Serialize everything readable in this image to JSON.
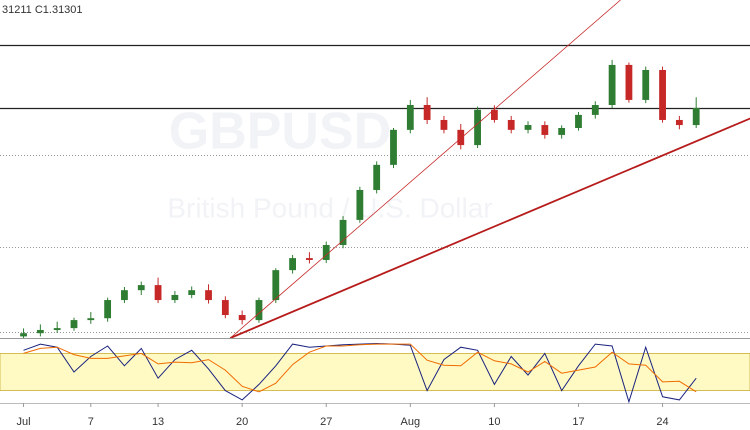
{
  "chart_data": {
    "type": "candlestick",
    "ohlc_text": "31211 C1.31301",
    "watermark": "GBPUSD",
    "watermark_subtitle": "British Pound / U.S. Dollar",
    "xlim": [
      -1.4,
      43.2
    ],
    "xticks": [
      {
        "value": 0,
        "label": "Jul"
      },
      {
        "value": 4,
        "label": "7"
      },
      {
        "value": 8,
        "label": "13"
      },
      {
        "value": 13,
        "label": "20"
      },
      {
        "value": 18,
        "label": "27"
      },
      {
        "value": 23,
        "label": "Aug"
      },
      {
        "value": 28,
        "label": "10"
      },
      {
        "value": 33,
        "label": "17"
      },
      {
        "value": 38,
        "label": "24"
      }
    ],
    "ylim": [
      1.2269,
      1.3534
    ],
    "up_color": "#2e7d32",
    "down_color": "#c62828",
    "candles": {
      "open": [
        1.2275,
        1.2287,
        1.2299,
        1.2306,
        1.2336,
        1.2343,
        1.2411,
        1.2448,
        1.2467,
        1.2411,
        1.243,
        1.2448,
        1.2411,
        1.2355,
        1.2336,
        1.2411,
        1.2523,
        1.2568,
        1.2561,
        1.2617,
        1.2711,
        1.2823,
        1.2917,
        1.3048,
        1.3141,
        1.3085,
        1.3048,
        1.2991,
        1.3123,
        1.3085,
        1.3048,
        1.3066,
        1.3029,
        1.3055,
        1.3104,
        1.3141,
        1.3291,
        1.316,
        1.3272,
        1.3085,
        1.3066
      ],
      "high": [
        1.2305,
        1.232,
        1.233,
        1.2345,
        1.2366,
        1.242,
        1.246,
        1.248,
        1.2495,
        1.2445,
        1.2462,
        1.247,
        1.2425,
        1.2372,
        1.242,
        1.253,
        1.258,
        1.259,
        1.263,
        1.2725,
        1.2835,
        1.293,
        1.3055,
        1.316,
        1.317,
        1.31,
        1.307,
        1.3135,
        1.314,
        1.31,
        1.308,
        1.308,
        1.3065,
        1.3115,
        1.3155,
        1.331,
        1.33,
        1.3285,
        1.3285,
        1.31,
        1.317
      ],
      "low": [
        1.2269,
        1.2275,
        1.2288,
        1.2296,
        1.2322,
        1.233,
        1.24,
        1.243,
        1.24,
        1.24,
        1.2418,
        1.2398,
        1.2343,
        1.232,
        1.2326,
        1.24,
        1.251,
        1.2548,
        1.255,
        1.2605,
        1.27,
        1.281,
        1.2905,
        1.3035,
        1.307,
        1.3035,
        1.2975,
        1.298,
        1.3075,
        1.3035,
        1.3035,
        1.3015,
        1.3015,
        1.3045,
        1.309,
        1.313,
        1.315,
        1.3148,
        1.3075,
        1.305,
        1.3055
      ],
      "close": [
        1.2287,
        1.2299,
        1.2306,
        1.2336,
        1.2343,
        1.2411,
        1.2448,
        1.2467,
        1.2411,
        1.243,
        1.2448,
        1.2411,
        1.2355,
        1.2336,
        1.2411,
        1.2523,
        1.2568,
        1.2561,
        1.2617,
        1.2711,
        1.2823,
        1.2917,
        1.3048,
        1.3141,
        1.3085,
        1.3048,
        1.2991,
        1.3123,
        1.3085,
        1.3048,
        1.3066,
        1.3029,
        1.3055,
        1.3104,
        1.3141,
        1.3291,
        1.316,
        1.3272,
        1.3085,
        1.3066,
        1.313
      ]
    },
    "levels": [
      {
        "value": 1.3366,
        "style": "solid"
      },
      {
        "value": 1.313,
        "style": "solid"
      },
      {
        "value": 1.2954,
        "style": "dotted"
      },
      {
        "value": 1.2609,
        "style": "dotted"
      },
      {
        "value": 1.2291,
        "style": "dotted"
      }
    ],
    "trendlines": [
      {
        "x": [
          12.3,
          35.5
        ],
        "y": [
          1.2269,
          1.3534
        ],
        "color": "#c62828",
        "width": 0.8
      },
      {
        "x": [
          12.3,
          43.3
        ],
        "y": [
          1.2269,
          1.3093
        ],
        "color": "#b71c1c",
        "width": 1.8
      }
    ],
    "oscillator": {
      "ylim": [
        0,
        100
      ],
      "band": [
        20,
        80
      ],
      "band_color": "#fff9c4",
      "series": [
        {
          "color": "#1a237e",
          "values": [
            85,
            95,
            90,
            50,
            75,
            92,
            60,
            88,
            40,
            70,
            85,
            55,
            20,
            5,
            30,
            60,
            95,
            90,
            92,
            94,
            95,
            96,
            95,
            93,
            20,
            70,
            90,
            85,
            30,
            75,
            45,
            80,
            20,
            60,
            95,
            92,
            2,
            90,
            10,
            5,
            40
          ]
        },
        {
          "color": "#ef6c00",
          "values": [
            80,
            88,
            90,
            78,
            72,
            72,
            76,
            80,
            63,
            66,
            65,
            70,
            53,
            27,
            18,
            32,
            62,
            82,
            92,
            92,
            94,
            95,
            95,
            95,
            69,
            61,
            60,
            82,
            68,
            63,
            50,
            67,
            48,
            53,
            58,
            82,
            63,
            61,
            34,
            35,
            18
          ]
        }
      ]
    }
  }
}
